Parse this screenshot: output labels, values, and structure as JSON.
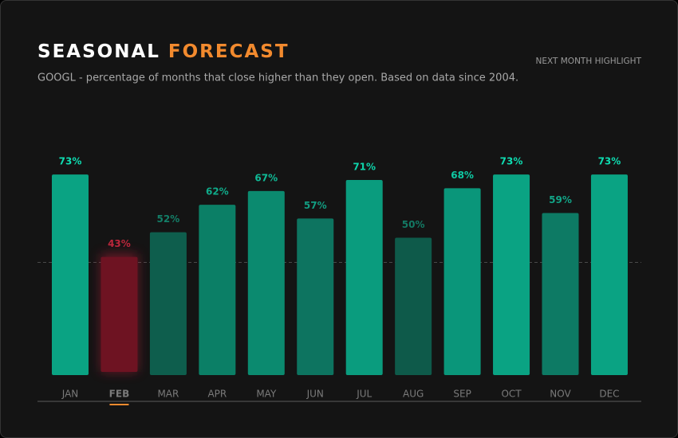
{
  "chart_data": {
    "type": "bar",
    "title": "SEASONAL",
    "title_accent": "FORECAST",
    "subtitle": "GOOGL - percentage of months that close higher than they open. Based on data since 2004.",
    "note": "NEXT MONTH HIGHLIGHT",
    "categories": [
      "JAN",
      "FEB",
      "MAR",
      "APR",
      "MAY",
      "JUN",
      "JUL",
      "AUG",
      "SEP",
      "OCT",
      "NOV",
      "DEC"
    ],
    "values": [
      73,
      43,
      52,
      62,
      67,
      57,
      71,
      50,
      68,
      73,
      59,
      73
    ],
    "value_labels": [
      "73%",
      "43%",
      "52%",
      "62%",
      "67%",
      "57%",
      "71%",
      "50%",
      "68%",
      "73%",
      "59%",
      "73%"
    ],
    "colors": [
      "#0aa383",
      "#6e1322",
      "#0e5e4d",
      "#0b7f66",
      "#0b8a6f",
      "#0d7460",
      "#0a9c7e",
      "#0e5a4a",
      "#0a967a",
      "#0aa383",
      "#0d7a64",
      "#0aa383"
    ],
    "highlight": "FEB",
    "reference_line": 41,
    "ylim": [
      0,
      80
    ]
  }
}
